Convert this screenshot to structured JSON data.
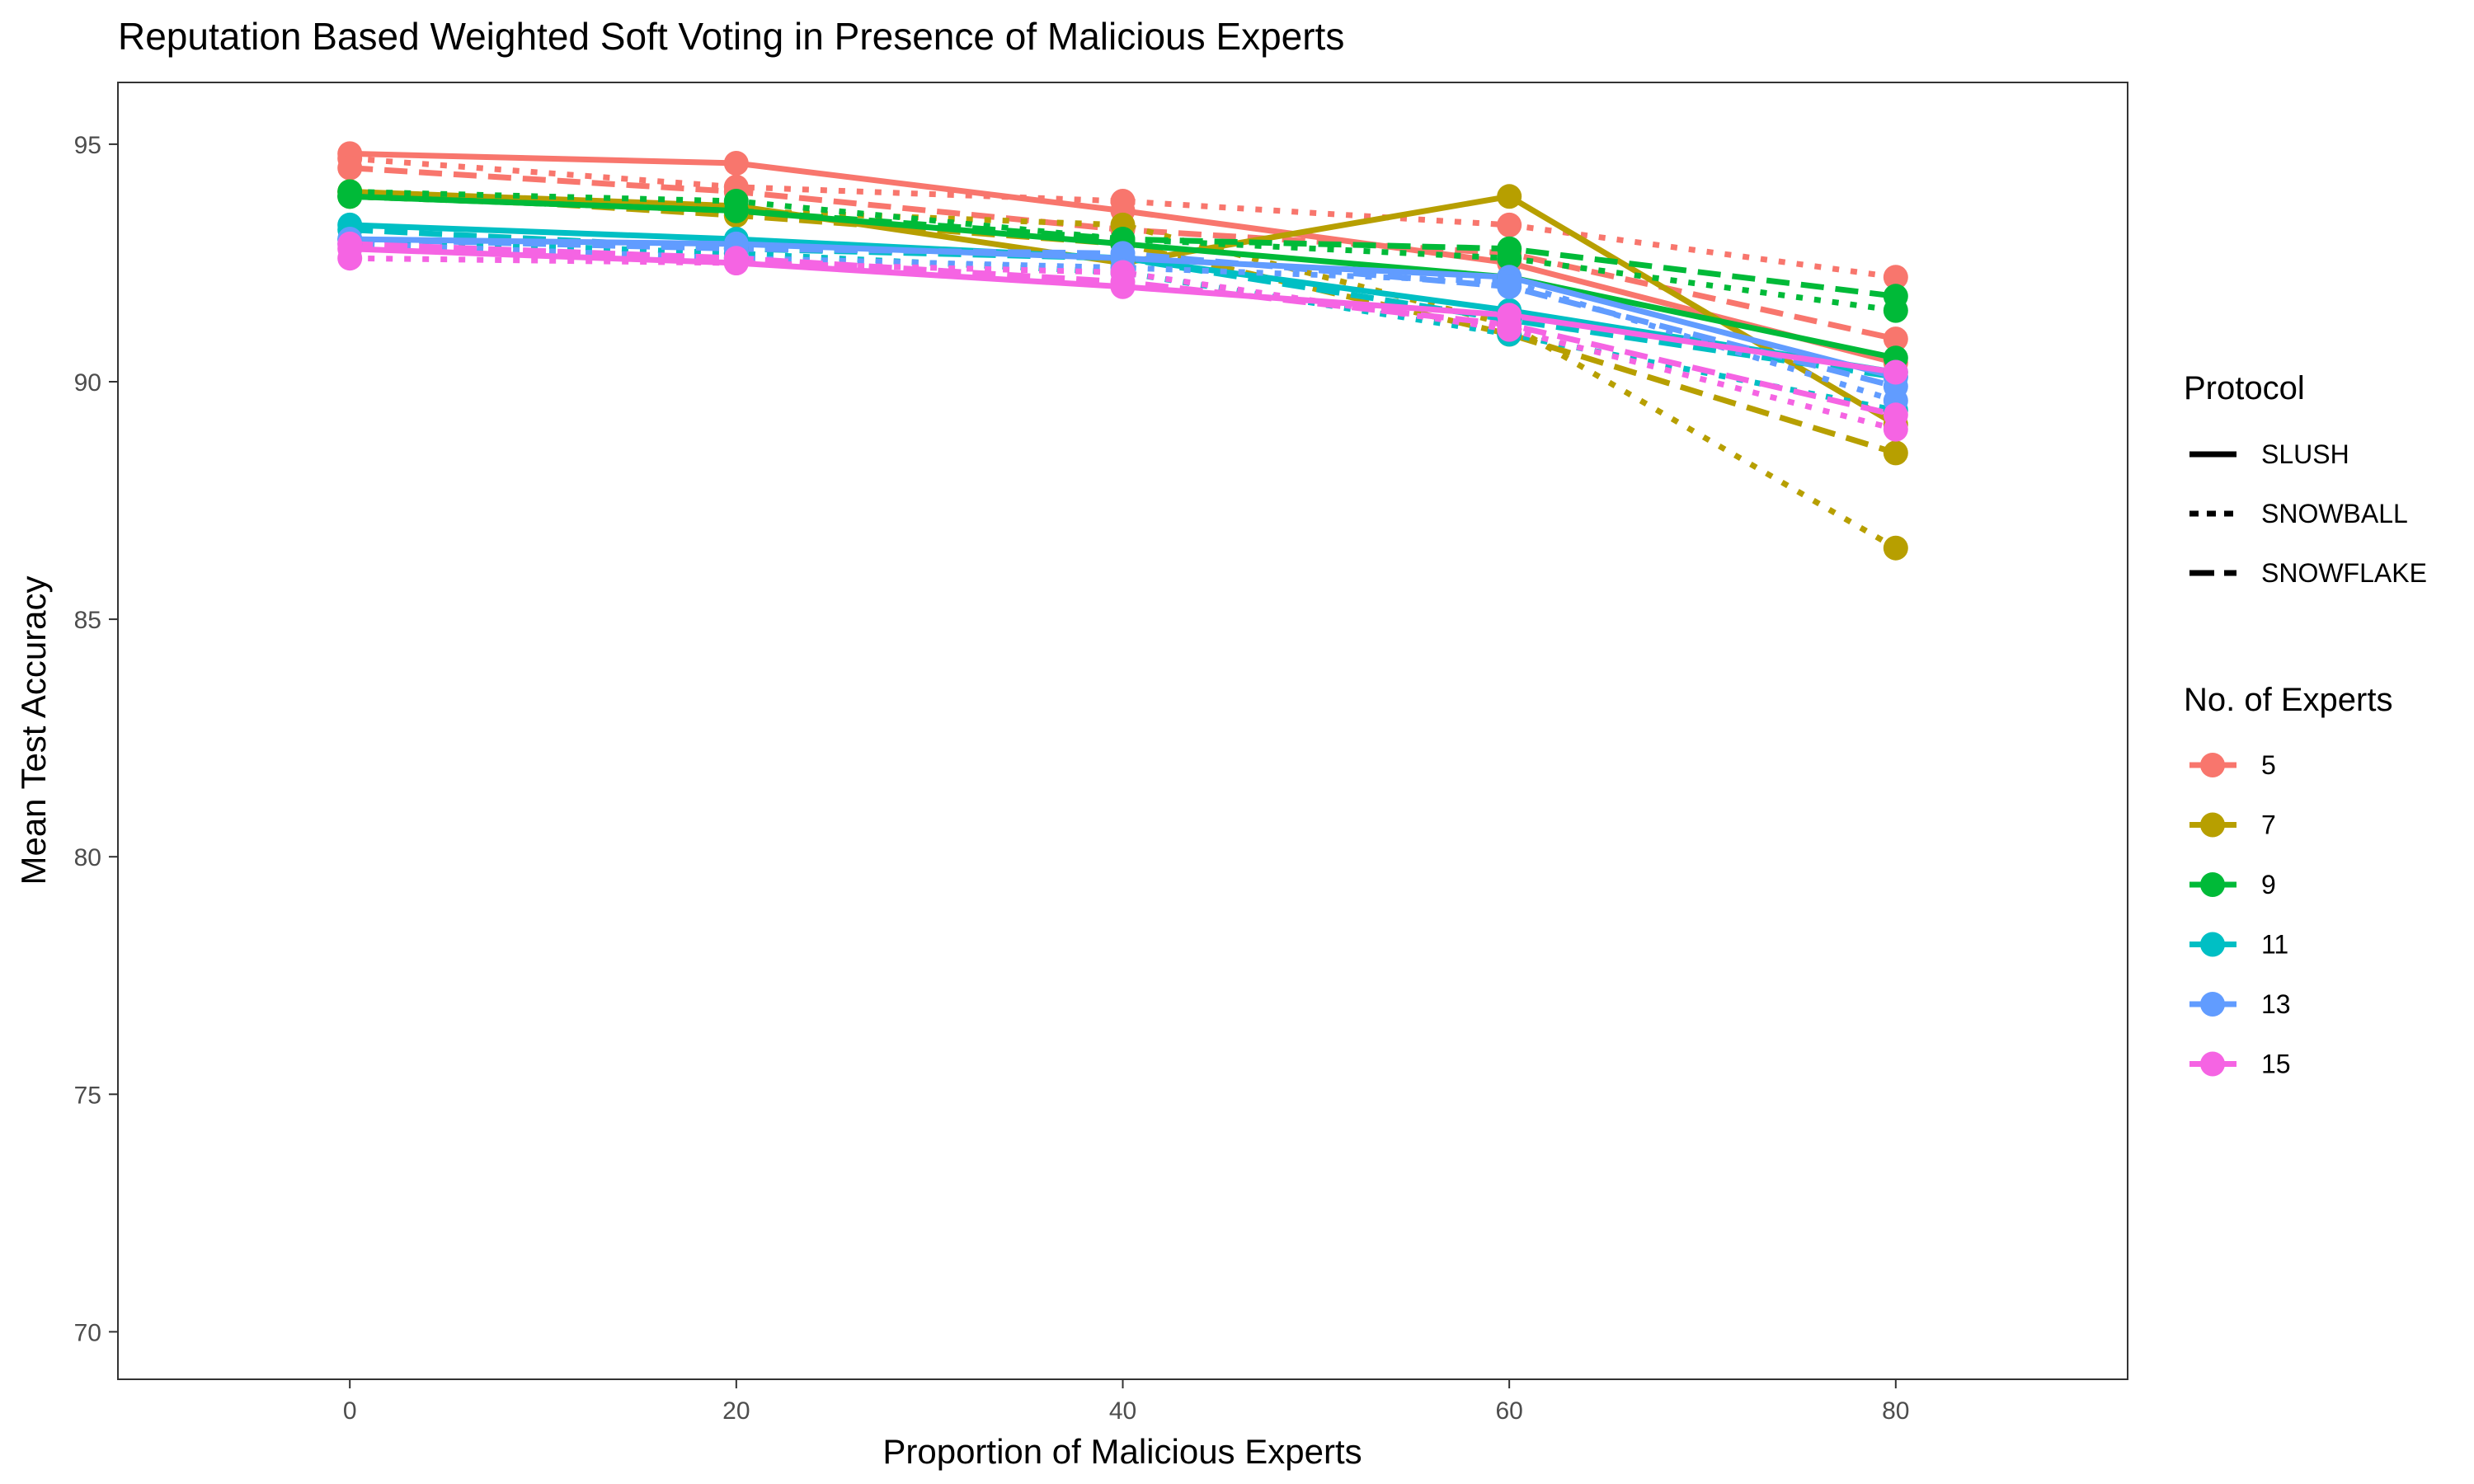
{
  "chart_data": {
    "type": "line",
    "title": "Reputation Based Weighted Soft Voting in Presence of Malicious Experts",
    "xlabel": "Proportion of Malicious Experts",
    "ylabel": "Mean Test Accuracy",
    "xlim": [
      -12,
      92
    ],
    "ylim": [
      69,
      96.3
    ],
    "x_ticks": [
      0,
      20,
      40,
      60,
      80
    ],
    "y_ticks": [
      70,
      75,
      80,
      85,
      90,
      95
    ],
    "x_tick_labels": [
      "0",
      "20",
      "40",
      "60",
      "80"
    ],
    "y_tick_labels": [
      "70",
      "75",
      "80",
      "85",
      "90",
      "95"
    ],
    "grid": false,
    "legend_placement": "right",
    "x": [
      0,
      20,
      40,
      60,
      80
    ],
    "linetype_legend": {
      "title": "Protocol",
      "items": [
        {
          "label": "SLUSH",
          "dash": "solid"
        },
        {
          "label": "SNOWBALL",
          "dash": "dotted"
        },
        {
          "label": "SNOWFLAKE",
          "dash": "dashed"
        }
      ]
    },
    "color_legend": {
      "title": "No. of Experts",
      "items": [
        {
          "label": "5",
          "color": "#F8766D"
        },
        {
          "label": "7",
          "color": "#B79F00"
        },
        {
          "label": "9",
          "color": "#00BA38"
        },
        {
          "label": "11",
          "color": "#00BFC4"
        },
        {
          "label": "13",
          "color": "#619CFF"
        },
        {
          "label": "15",
          "color": "#F564E3"
        }
      ]
    },
    "series": [
      {
        "experts": "5",
        "protocol": "SLUSH",
        "color": "#F8766D",
        "dash": "solid",
        "values": [
          94.8,
          94.6,
          93.6,
          92.5,
          90.4
        ]
      },
      {
        "experts": "5",
        "protocol": "SNOWBALL",
        "color": "#F8766D",
        "dash": "dotted",
        "values": [
          94.7,
          94.1,
          93.8,
          93.3,
          92.2
        ]
      },
      {
        "experts": "5",
        "protocol": "SNOWFLAKE",
        "color": "#F8766D",
        "dash": "dashed",
        "values": [
          94.5,
          94.0,
          93.2,
          92.7,
          90.9
        ]
      },
      {
        "experts": "7",
        "protocol": "SLUSH",
        "color": "#B79F00",
        "dash": "solid",
        "values": [
          94.0,
          93.7,
          92.5,
          93.9,
          89.1
        ]
      },
      {
        "experts": "7",
        "protocol": "SNOWBALL",
        "color": "#B79F00",
        "dash": "dotted",
        "values": [
          93.9,
          93.6,
          93.3,
          91.2,
          86.5
        ]
      },
      {
        "experts": "7",
        "protocol": "SNOWFLAKE",
        "color": "#B79F00",
        "dash": "dashed",
        "values": [
          94.0,
          93.5,
          92.9,
          91.0,
          88.5
        ]
      },
      {
        "experts": "9",
        "protocol": "SLUSH",
        "color": "#00BA38",
        "dash": "solid",
        "values": [
          93.9,
          93.6,
          92.9,
          92.2,
          90.5
        ]
      },
      {
        "experts": "9",
        "protocol": "SNOWBALL",
        "color": "#00BA38",
        "dash": "dotted",
        "values": [
          94.0,
          93.8,
          93.0,
          92.6,
          91.5
        ]
      },
      {
        "experts": "9",
        "protocol": "SNOWFLAKE",
        "color": "#00BA38",
        "dash": "dashed",
        "values": [
          93.9,
          93.6,
          93.0,
          92.8,
          91.8
        ]
      },
      {
        "experts": "11",
        "protocol": "SLUSH",
        "color": "#00BFC4",
        "dash": "solid",
        "values": [
          93.3,
          93.0,
          92.6,
          91.5,
          90.2
        ]
      },
      {
        "experts": "11",
        "protocol": "SNOWBALL",
        "color": "#00BFC4",
        "dash": "dotted",
        "values": [
          93.0,
          92.7,
          92.3,
          91.0,
          89.4
        ]
      },
      {
        "experts": "11",
        "protocol": "SNOWFLAKE",
        "color": "#00BFC4",
        "dash": "dashed",
        "values": [
          93.2,
          92.8,
          92.6,
          91.3,
          90.1
        ]
      },
      {
        "experts": "13",
        "protocol": "SLUSH",
        "color": "#619CFF",
        "dash": "solid",
        "values": [
          93.0,
          92.9,
          92.6,
          92.2,
          90.1
        ]
      },
      {
        "experts": "13",
        "protocol": "SNOWBALL",
        "color": "#619CFF",
        "dash": "dotted",
        "values": [
          92.9,
          92.6,
          92.4,
          92.1,
          89.6
        ]
      },
      {
        "experts": "13",
        "protocol": "SNOWFLAKE",
        "color": "#619CFF",
        "dash": "dashed",
        "values": [
          93.0,
          92.8,
          92.7,
          92.0,
          89.9
        ]
      },
      {
        "experts": "15",
        "protocol": "SLUSH",
        "color": "#F564E3",
        "dash": "solid",
        "values": [
          92.8,
          92.5,
          92.0,
          91.4,
          90.2
        ]
      },
      {
        "experts": "15",
        "protocol": "SNOWBALL",
        "color": "#F564E3",
        "dash": "dotted",
        "values": [
          92.6,
          92.5,
          92.3,
          91.1,
          89.0
        ]
      },
      {
        "experts": "15",
        "protocol": "SNOWFLAKE",
        "color": "#F564E3",
        "dash": "dashed",
        "values": [
          92.9,
          92.6,
          92.1,
          91.2,
          89.3
        ]
      }
    ]
  }
}
